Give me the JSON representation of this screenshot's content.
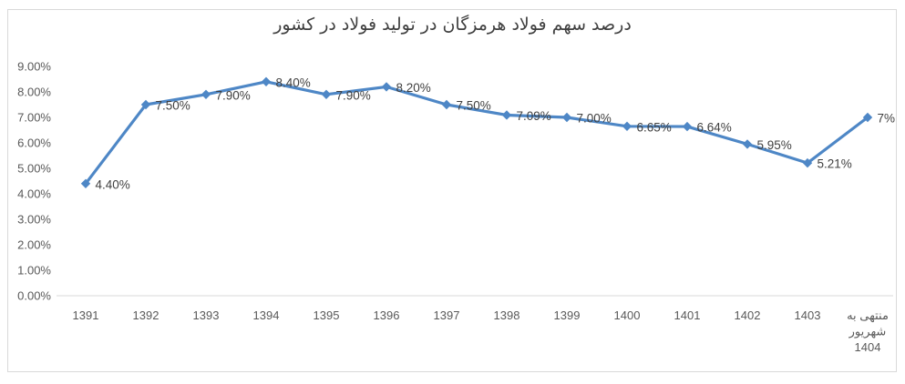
{
  "colors": {
    "series": "#4e87c6",
    "data_label": "#404040",
    "tick_label": "#595959",
    "axis_line": "#d9d9d9",
    "frame_border": "#d9d9d9",
    "background": "#ffffff",
    "title": "#3f3f3f"
  },
  "chart_data": {
    "type": "line",
    "title": "درصد سهم فولاد هرمزگان در تولید فولاد در کشور",
    "categories": [
      "1391",
      "1392",
      "1393",
      "1394",
      "1395",
      "1396",
      "1397",
      "1398",
      "1399",
      "1400",
      "1401",
      "1402",
      "1403",
      "منتهی به شهریور 1404"
    ],
    "values": [
      4.4,
      7.5,
      7.9,
      8.4,
      7.9,
      8.2,
      7.5,
      7.09,
      7.0,
      6.65,
      6.64,
      5.95,
      5.21,
      7.0
    ],
    "data_labels": [
      "4.40%",
      "7.50%",
      "7.90%",
      "8.40%",
      "7.90%",
      "8.20%",
      "7.50%",
      "7.09%",
      "7.00%",
      "6.65%",
      "6.64%",
      "5.95%",
      "5.21%",
      "7%"
    ],
    "last_category_lines": [
      "منتهی به",
      "شهریور",
      "1404"
    ],
    "y_ticks": [
      "0.00%",
      "1.00%",
      "2.00%",
      "3.00%",
      "4.00%",
      "5.00%",
      "6.00%",
      "7.00%",
      "8.00%",
      "9.00%"
    ],
    "ylim": [
      0,
      9
    ],
    "xlabel": "",
    "ylabel": "",
    "grid": false,
    "legend": null,
    "marker": "diamond"
  }
}
